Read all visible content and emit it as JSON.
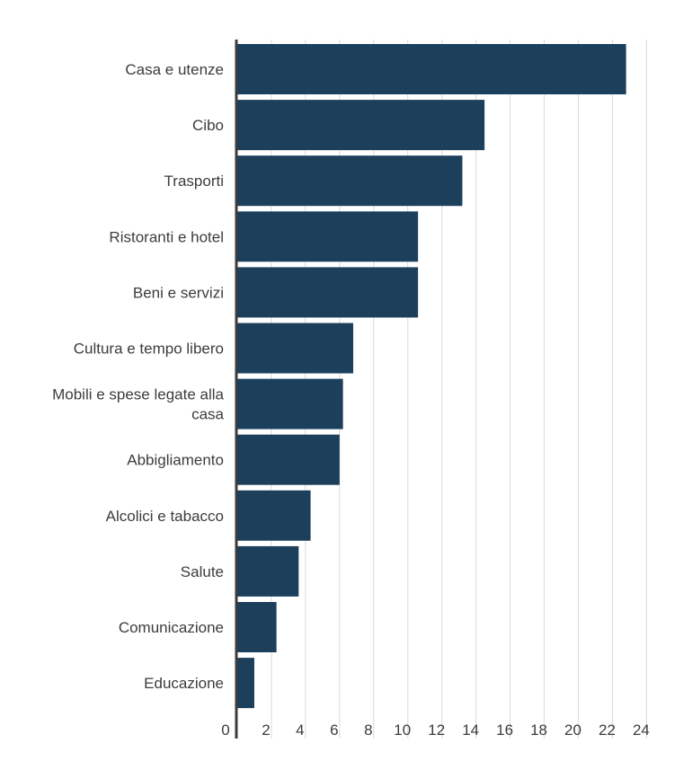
{
  "chart_data": {
    "type": "bar",
    "orientation": "horizontal",
    "categories": [
      "Casa e utenze",
      "Cibo",
      "Trasporti",
      "Ristoranti e hotel",
      "Beni e servizi",
      "Cultura e tempo libero",
      "Mobili e spese legate alla casa",
      "Abbigliamento",
      "Alcolici e tabacco",
      "Salute",
      "Comunicazione",
      "Educazione"
    ],
    "category_lines": [
      [
        "Casa e utenze"
      ],
      [
        "Cibo"
      ],
      [
        "Trasporti"
      ],
      [
        "Ristoranti e hotel"
      ],
      [
        "Beni e servizi"
      ],
      [
        "Cultura e tempo libero"
      ],
      [
        "Mobili e spese legate alla",
        "casa"
      ],
      [
        "Abbigliamento"
      ],
      [
        "Alcolici e tabacco"
      ],
      [
        "Salute"
      ],
      [
        "Comunicazione"
      ],
      [
        "Educazione"
      ]
    ],
    "values": [
      22.8,
      14.5,
      13.2,
      10.6,
      10.6,
      6.8,
      6.2,
      6.0,
      4.3,
      3.6,
      2.3,
      1.0
    ],
    "xticks": [
      0,
      2,
      4,
      6,
      8,
      10,
      12,
      14,
      16,
      18,
      20,
      22,
      24
    ],
    "xlim": [
      0,
      24.4
    ],
    "grid": true,
    "legend": "none",
    "bar_color": "#1c3f5c",
    "title": "",
    "xlabel": "",
    "ylabel": ""
  }
}
